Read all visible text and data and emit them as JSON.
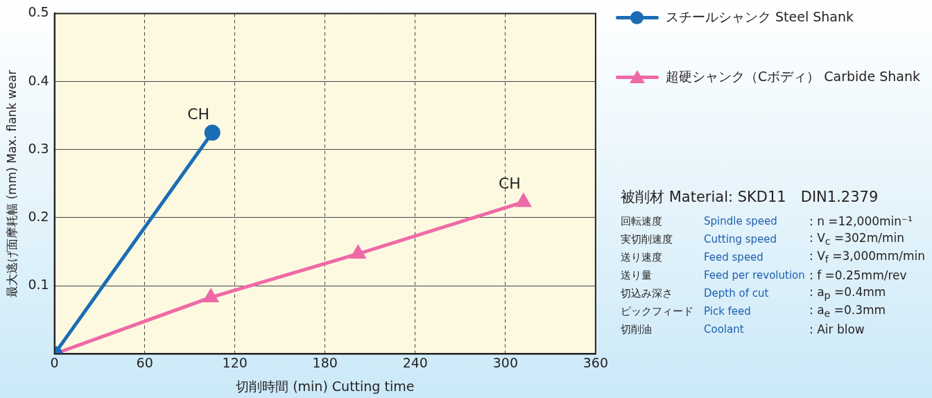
{
  "chart_data": {
    "type": "line",
    "xlabel": "切削時間 (min) Cutting time",
    "ylabel": "最大逃げ面摩耗幅 (mm) Max. flank wear",
    "xlim": [
      0,
      360
    ],
    "xticks": [
      0,
      60,
      120,
      180,
      240,
      300,
      360
    ],
    "ylim": [
      0,
      0.5
    ],
    "yticks": [
      0.1,
      0.2,
      0.3,
      0.4,
      0.5
    ],
    "grid": true,
    "legend": "right",
    "series": [
      {
        "name": "スチールシャンク Steel Shank",
        "color": "#1a6db5",
        "marker": "circle",
        "x": [
          0,
          105
        ],
        "values": [
          0,
          0.325
        ]
      },
      {
        "name": "超硬シャンク（Cボディ） Carbide Shank",
        "color": "#ee6aa7",
        "marker": "triangle",
        "x": [
          0,
          104,
          202,
          312
        ],
        "values": [
          0,
          0.083,
          0.147,
          0.223
        ]
      }
    ],
    "annotations": [
      {
        "text": "CH",
        "x": 105,
        "y": 0.325
      },
      {
        "text": "CH",
        "x": 312,
        "y": 0.223
      },
      "被削材 Material: SKD11　DIN1.2379",
      "回転速度",
      "Spindle speed",
      ": n =12,000min⁻¹",
      "実切削速度",
      "Cutting speed",
      ": V$_{c}$ =302m/min",
      "送り速度",
      "Feed speed",
      ": V$_{f}$ =3,000mm/min",
      "送り量",
      "Feed per revolution",
      ": f =0.25mm/rev",
      "切込み深さ",
      "Depth of cut",
      ": a$_{p}$ =0.4mm",
      "ピックフィード",
      "Pick feed",
      ": a$_{e}$ =0.3mm",
      "切削油",
      "Coolant",
      ": Air blow"
    ]
  }
}
